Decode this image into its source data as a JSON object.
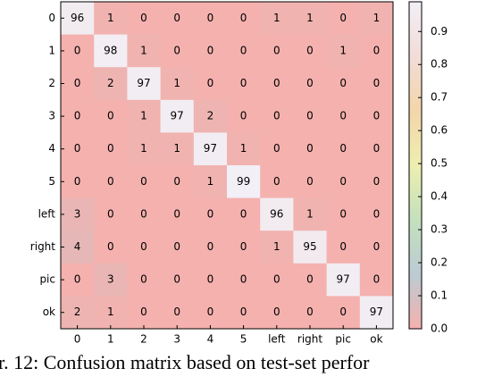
{
  "chart_data": {
    "type": "heatmap",
    "caption": "r. 12: Confusion matrix based on test-set perfor",
    "x": [
      "0",
      "1",
      "2",
      "3",
      "4",
      "5",
      "left",
      "right",
      "pic",
      "ok"
    ],
    "y": [
      "0",
      "1",
      "2",
      "3",
      "4",
      "5",
      "left",
      "right",
      "pic",
      "ok"
    ],
    "z": [
      [
        96,
        1,
        0,
        0,
        0,
        0,
        1,
        1,
        0,
        1
      ],
      [
        0,
        98,
        1,
        0,
        0,
        0,
        0,
        0,
        1,
        0
      ],
      [
        0,
        2,
        97,
        1,
        0,
        0,
        0,
        0,
        0,
        0
      ],
      [
        0,
        0,
        1,
        97,
        2,
        0,
        0,
        0,
        0,
        0
      ],
      [
        0,
        0,
        1,
        1,
        97,
        1,
        0,
        0,
        0,
        0
      ],
      [
        0,
        0,
        0,
        0,
        1,
        99,
        0,
        0,
        0,
        0
      ],
      [
        3,
        0,
        0,
        0,
        0,
        0,
        96,
        1,
        0,
        0
      ],
      [
        4,
        0,
        0,
        0,
        0,
        0,
        1,
        95,
        0,
        0
      ],
      [
        0,
        3,
        0,
        0,
        0,
        0,
        0,
        0,
        97,
        0
      ],
      [
        2,
        1,
        0,
        0,
        0,
        0,
        0,
        0,
        0,
        97
      ]
    ],
    "zlim": [
      0,
      99
    ],
    "zticks": [
      {
        "value": 0,
        "label": "0.0"
      },
      {
        "value": 10,
        "label": "0.1"
      },
      {
        "value": 20,
        "label": "0.2"
      },
      {
        "value": 30,
        "label": "0.3"
      },
      {
        "value": 40,
        "label": "0.4"
      },
      {
        "value": 50,
        "label": "0.5"
      },
      {
        "value": 60,
        "label": "0.6"
      },
      {
        "value": 70,
        "label": "0.7"
      },
      {
        "value": 80,
        "label": "0.8"
      },
      {
        "value": 90,
        "label": "0.9"
      }
    ],
    "colorscale": [
      "#f4b1ae",
      "#bccbd3",
      "#c4e0bd",
      "#eeeeb0",
      "#f3d6aa",
      "#f2dcd8",
      "#f2eff6"
    ]
  }
}
